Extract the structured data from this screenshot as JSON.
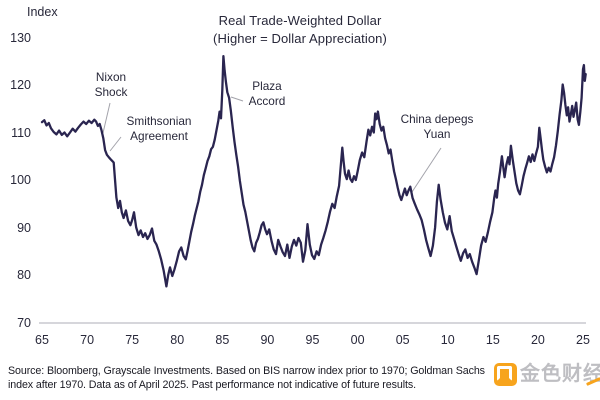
{
  "chart_data": {
    "type": "line",
    "title": "Real Trade-Weighted Dollar",
    "subtitle": "(Higher = Dollar Appreciation)",
    "y_axis": {
      "label": "Index",
      "ticks": [
        130,
        120,
        110,
        100,
        90,
        80,
        70
      ],
      "range": [
        70,
        130
      ]
    },
    "x_axis": {
      "tick_labels": [
        "65",
        "70",
        "75",
        "80",
        "85",
        "90",
        "95",
        "00",
        "05",
        "10",
        "15",
        "20",
        "25"
      ],
      "tick_years": [
        1965,
        1970,
        1975,
        1980,
        1985,
        1990,
        1995,
        2000,
        2005,
        2010,
        2015,
        2020,
        2025
      ],
      "range": [
        1965,
        2025.4
      ]
    },
    "grid": false,
    "legend": "none",
    "line_color": "#2a2550",
    "annotations": [
      {
        "id": "nixon-shock",
        "line1": "Nixon",
        "line2": "Shock"
      },
      {
        "id": "smithsonian-agreement",
        "line1": "Smithsonian",
        "line2": "Agreement"
      },
      {
        "id": "plaza-accord",
        "line1": "Plaza",
        "line2": "Accord"
      },
      {
        "id": "china-depegs-yuan",
        "line1": "China depegs",
        "line2": "Yuan"
      }
    ],
    "series": [
      {
        "name": "Real trade-weighted dollar index",
        "points": [
          [
            1965.0,
            112.3
          ],
          [
            1965.25,
            112.7
          ],
          [
            1965.5,
            111.6
          ],
          [
            1965.75,
            112.1
          ],
          [
            1966.0,
            111.0
          ],
          [
            1966.3,
            110.2
          ],
          [
            1966.6,
            109.7
          ],
          [
            1966.9,
            110.5
          ],
          [
            1967.2,
            109.6
          ],
          [
            1967.5,
            110.1
          ],
          [
            1967.8,
            109.3
          ],
          [
            1968.1,
            110.1
          ],
          [
            1968.4,
            110.9
          ],
          [
            1968.7,
            110.3
          ],
          [
            1969.0,
            111.1
          ],
          [
            1969.3,
            111.8
          ],
          [
            1969.6,
            112.4
          ],
          [
            1969.9,
            111.9
          ],
          [
            1970.2,
            112.6
          ],
          [
            1970.5,
            112.1
          ],
          [
            1970.8,
            112.8
          ],
          [
            1971.0,
            112.4
          ],
          [
            1971.2,
            111.5
          ],
          [
            1971.4,
            111.9
          ],
          [
            1971.6,
            110.6
          ],
          [
            1971.8,
            108.9
          ],
          [
            1972.0,
            106.4
          ],
          [
            1972.2,
            105.4
          ],
          [
            1972.45,
            104.8
          ],
          [
            1972.7,
            104.3
          ],
          [
            1972.95,
            103.8
          ],
          [
            1973.1,
            100.2
          ],
          [
            1973.25,
            96.4
          ],
          [
            1973.45,
            94.2
          ],
          [
            1973.65,
            95.7
          ],
          [
            1973.85,
            93.3
          ],
          [
            1974.05,
            92.1
          ],
          [
            1974.3,
            93.7
          ],
          [
            1974.55,
            91.5
          ],
          [
            1974.8,
            90.6
          ],
          [
            1975.0,
            91.7
          ],
          [
            1975.2,
            93.3
          ],
          [
            1975.45,
            90.1
          ],
          [
            1975.7,
            88.5
          ],
          [
            1975.95,
            89.5
          ],
          [
            1976.2,
            88.1
          ],
          [
            1976.45,
            88.9
          ],
          [
            1976.7,
            87.7
          ],
          [
            1976.95,
            88.5
          ],
          [
            1977.2,
            89.9
          ],
          [
            1977.45,
            87.3
          ],
          [
            1977.7,
            86.5
          ],
          [
            1977.95,
            85.1
          ],
          [
            1978.2,
            83.5
          ],
          [
            1978.5,
            81.0
          ],
          [
            1978.8,
            77.7
          ],
          [
            1979.0,
            80.1
          ],
          [
            1979.2,
            81.7
          ],
          [
            1979.45,
            79.9
          ],
          [
            1979.7,
            81.3
          ],
          [
            1979.95,
            83.1
          ],
          [
            1980.2,
            85.1
          ],
          [
            1980.45,
            85.9
          ],
          [
            1980.7,
            84.1
          ],
          [
            1980.95,
            83.4
          ],
          [
            1981.15,
            85.2
          ],
          [
            1981.35,
            87.2
          ],
          [
            1981.55,
            89.2
          ],
          [
            1981.75,
            90.8
          ],
          [
            1981.95,
            92.6
          ],
          [
            1982.15,
            94.1
          ],
          [
            1982.35,
            95.6
          ],
          [
            1982.55,
            97.6
          ],
          [
            1982.75,
            99.1
          ],
          [
            1982.95,
            101.1
          ],
          [
            1983.15,
            102.6
          ],
          [
            1983.35,
            104.1
          ],
          [
            1983.55,
            105.1
          ],
          [
            1983.75,
            106.6
          ],
          [
            1983.95,
            107.1
          ],
          [
            1984.15,
            108.6
          ],
          [
            1984.35,
            110.6
          ],
          [
            1984.55,
            112.6
          ],
          [
            1984.7,
            114.5
          ],
          [
            1984.85,
            113.1
          ],
          [
            1985.0,
            119.0
          ],
          [
            1985.12,
            126.2
          ],
          [
            1985.25,
            123.2
          ],
          [
            1985.4,
            120.8
          ],
          [
            1985.55,
            118.6
          ],
          [
            1985.75,
            117.4
          ],
          [
            1985.95,
            114.6
          ],
          [
            1986.15,
            111.2
          ],
          [
            1986.35,
            108.1
          ],
          [
            1986.55,
            105.4
          ],
          [
            1986.75,
            102.9
          ],
          [
            1986.95,
            99.9
          ],
          [
            1987.15,
            97.4
          ],
          [
            1987.35,
            94.9
          ],
          [
            1987.55,
            93.4
          ],
          [
            1987.75,
            91.4
          ],
          [
            1987.95,
            89.4
          ],
          [
            1988.15,
            87.4
          ],
          [
            1988.35,
            85.9
          ],
          [
            1988.55,
            85.1
          ],
          [
            1988.75,
            86.9
          ],
          [
            1988.95,
            87.7
          ],
          [
            1989.15,
            89.1
          ],
          [
            1989.35,
            90.6
          ],
          [
            1989.55,
            91.2
          ],
          [
            1989.75,
            89.7
          ],
          [
            1989.95,
            88.7
          ],
          [
            1990.2,
            89.7
          ],
          [
            1990.45,
            87.3
          ],
          [
            1990.7,
            85.5
          ],
          [
            1990.95,
            84.5
          ],
          [
            1991.2,
            87.5
          ],
          [
            1991.45,
            86.1
          ],
          [
            1991.7,
            84.9
          ],
          [
            1991.95,
            84.1
          ],
          [
            1992.2,
            86.5
          ],
          [
            1992.45,
            83.7
          ],
          [
            1992.7,
            86.1
          ],
          [
            1992.95,
            87.5
          ],
          [
            1993.2,
            86.3
          ],
          [
            1993.45,
            87.9
          ],
          [
            1993.7,
            86.9
          ],
          [
            1993.95,
            82.9
          ],
          [
            1994.2,
            85.3
          ],
          [
            1994.45,
            90.8
          ],
          [
            1994.7,
            86.5
          ],
          [
            1994.95,
            84.3
          ],
          [
            1995.2,
            83.5
          ],
          [
            1995.45,
            85.1
          ],
          [
            1995.7,
            84.3
          ],
          [
            1995.95,
            86.5
          ],
          [
            1996.2,
            87.9
          ],
          [
            1996.45,
            89.5
          ],
          [
            1996.7,
            91.3
          ],
          [
            1996.95,
            93.5
          ],
          [
            1997.2,
            95.1
          ],
          [
            1997.45,
            94.2
          ],
          [
            1997.7,
            96.7
          ],
          [
            1997.95,
            98.9
          ],
          [
            1998.15,
            103.4
          ],
          [
            1998.3,
            106.9
          ],
          [
            1998.45,
            104.0
          ],
          [
            1998.6,
            101.4
          ],
          [
            1998.8,
            100.3
          ],
          [
            1999.0,
            102.1
          ],
          [
            1999.2,
            100.3
          ],
          [
            1999.4,
            99.7
          ],
          [
            1999.6,
            100.9
          ],
          [
            1999.8,
            100.1
          ],
          [
            2000.0,
            101.9
          ],
          [
            2000.25,
            104.3
          ],
          [
            2000.5,
            105.9
          ],
          [
            2000.75,
            104.9
          ],
          [
            2001.0,
            108.3
          ],
          [
            2001.2,
            110.7
          ],
          [
            2001.4,
            109.5
          ],
          [
            2001.6,
            111.3
          ],
          [
            2001.8,
            110.1
          ],
          [
            2001.95,
            114.1
          ],
          [
            2002.1,
            112.9
          ],
          [
            2002.25,
            114.5
          ],
          [
            2002.45,
            111.9
          ],
          [
            2002.65,
            110.5
          ],
          [
            2002.85,
            111.3
          ],
          [
            2003.05,
            108.9
          ],
          [
            2003.25,
            107.5
          ],
          [
            2003.45,
            105.7
          ],
          [
            2003.65,
            106.5
          ],
          [
            2003.85,
            104.1
          ],
          [
            2004.05,
            101.9
          ],
          [
            2004.25,
            100.3
          ],
          [
            2004.45,
            98.5
          ],
          [
            2004.65,
            96.9
          ],
          [
            2004.85,
            95.9
          ],
          [
            2005.05,
            97.1
          ],
          [
            2005.25,
            98.3
          ],
          [
            2005.45,
            96.9
          ],
          [
            2005.65,
            97.9
          ],
          [
            2005.85,
            98.7
          ],
          [
            2006.1,
            96.3
          ],
          [
            2006.35,
            95.1
          ],
          [
            2006.6,
            93.9
          ],
          [
            2006.85,
            92.9
          ],
          [
            2007.1,
            91.7
          ],
          [
            2007.35,
            89.7
          ],
          [
            2007.6,
            87.5
          ],
          [
            2007.85,
            85.7
          ],
          [
            2008.1,
            84.1
          ],
          [
            2008.35,
            86.3
          ],
          [
            2008.6,
            90.1
          ],
          [
            2008.8,
            95.5
          ],
          [
            2009.0,
            99.1
          ],
          [
            2009.2,
            96.1
          ],
          [
            2009.45,
            93.3
          ],
          [
            2009.7,
            91.1
          ],
          [
            2009.95,
            89.7
          ],
          [
            2010.2,
            92.5
          ],
          [
            2010.45,
            89.3
          ],
          [
            2010.7,
            87.7
          ],
          [
            2010.95,
            86.1
          ],
          [
            2011.2,
            84.5
          ],
          [
            2011.45,
            83.1
          ],
          [
            2011.7,
            84.7
          ],
          [
            2011.95,
            85.5
          ],
          [
            2012.2,
            83.7
          ],
          [
            2012.45,
            84.5
          ],
          [
            2012.7,
            82.9
          ],
          [
            2012.95,
            81.7
          ],
          [
            2013.2,
            80.3
          ],
          [
            2013.45,
            83.3
          ],
          [
            2013.7,
            86.3
          ],
          [
            2013.95,
            88.1
          ],
          [
            2014.2,
            87.1
          ],
          [
            2014.45,
            89.1
          ],
          [
            2014.7,
            91.3
          ],
          [
            2014.95,
            93.3
          ],
          [
            2015.15,
            96.3
          ],
          [
            2015.3,
            97.9
          ],
          [
            2015.45,
            96.4
          ],
          [
            2015.6,
            99.3
          ],
          [
            2015.8,
            101.9
          ],
          [
            2016.0,
            105.1
          ],
          [
            2016.15,
            102.9
          ],
          [
            2016.3,
            100.7
          ],
          [
            2016.5,
            103.3
          ],
          [
            2016.7,
            104.9
          ],
          [
            2016.85,
            103.4
          ],
          [
            2017.0,
            107.3
          ],
          [
            2017.2,
            104.4
          ],
          [
            2017.4,
            101.9
          ],
          [
            2017.6,
            99.4
          ],
          [
            2017.8,
            97.9
          ],
          [
            2018.0,
            97.1
          ],
          [
            2018.2,
            98.9
          ],
          [
            2018.4,
            100.9
          ],
          [
            2018.6,
            102.4
          ],
          [
            2018.8,
            103.7
          ],
          [
            2019.0,
            105.1
          ],
          [
            2019.2,
            103.9
          ],
          [
            2019.4,
            105.5
          ],
          [
            2019.6,
            104.1
          ],
          [
            2019.8,
            105.7
          ],
          [
            2020.0,
            107.1
          ],
          [
            2020.15,
            111.1
          ],
          [
            2020.3,
            108.9
          ],
          [
            2020.45,
            106.4
          ],
          [
            2020.6,
            104.4
          ],
          [
            2020.8,
            102.9
          ],
          [
            2021.0,
            101.7
          ],
          [
            2021.2,
            102.7
          ],
          [
            2021.4,
            101.9
          ],
          [
            2021.6,
            103.5
          ],
          [
            2021.8,
            104.9
          ],
          [
            2022.0,
            107.4
          ],
          [
            2022.2,
            110.4
          ],
          [
            2022.4,
            113.9
          ],
          [
            2022.6,
            116.9
          ],
          [
            2022.75,
            120.2
          ],
          [
            2022.9,
            118.4
          ],
          [
            2023.05,
            115.9
          ],
          [
            2023.2,
            113.7
          ],
          [
            2023.35,
            115.4
          ],
          [
            2023.5,
            112.4
          ],
          [
            2023.65,
            113.9
          ],
          [
            2023.8,
            115.7
          ],
          [
            2023.95,
            113.4
          ],
          [
            2024.1,
            114.9
          ],
          [
            2024.25,
            116.4
          ],
          [
            2024.4,
            112.9
          ],
          [
            2024.55,
            111.7
          ],
          [
            2024.7,
            114.4
          ],
          [
            2024.85,
            117.4
          ],
          [
            2025.0,
            123.4
          ],
          [
            2025.1,
            124.3
          ],
          [
            2025.2,
            121.0
          ],
          [
            2025.3,
            122.4
          ]
        ]
      }
    ]
  },
  "footer": {
    "source_line1": "Source: Bloomberg, Grayscale Investments. Based on BIS narrow index prior to 1970; Goldman Sachs",
    "source_line2": "index after 1970. Data as of April 2025. Past performance not indicative of future results."
  },
  "watermark": {
    "text": "金色财经"
  }
}
